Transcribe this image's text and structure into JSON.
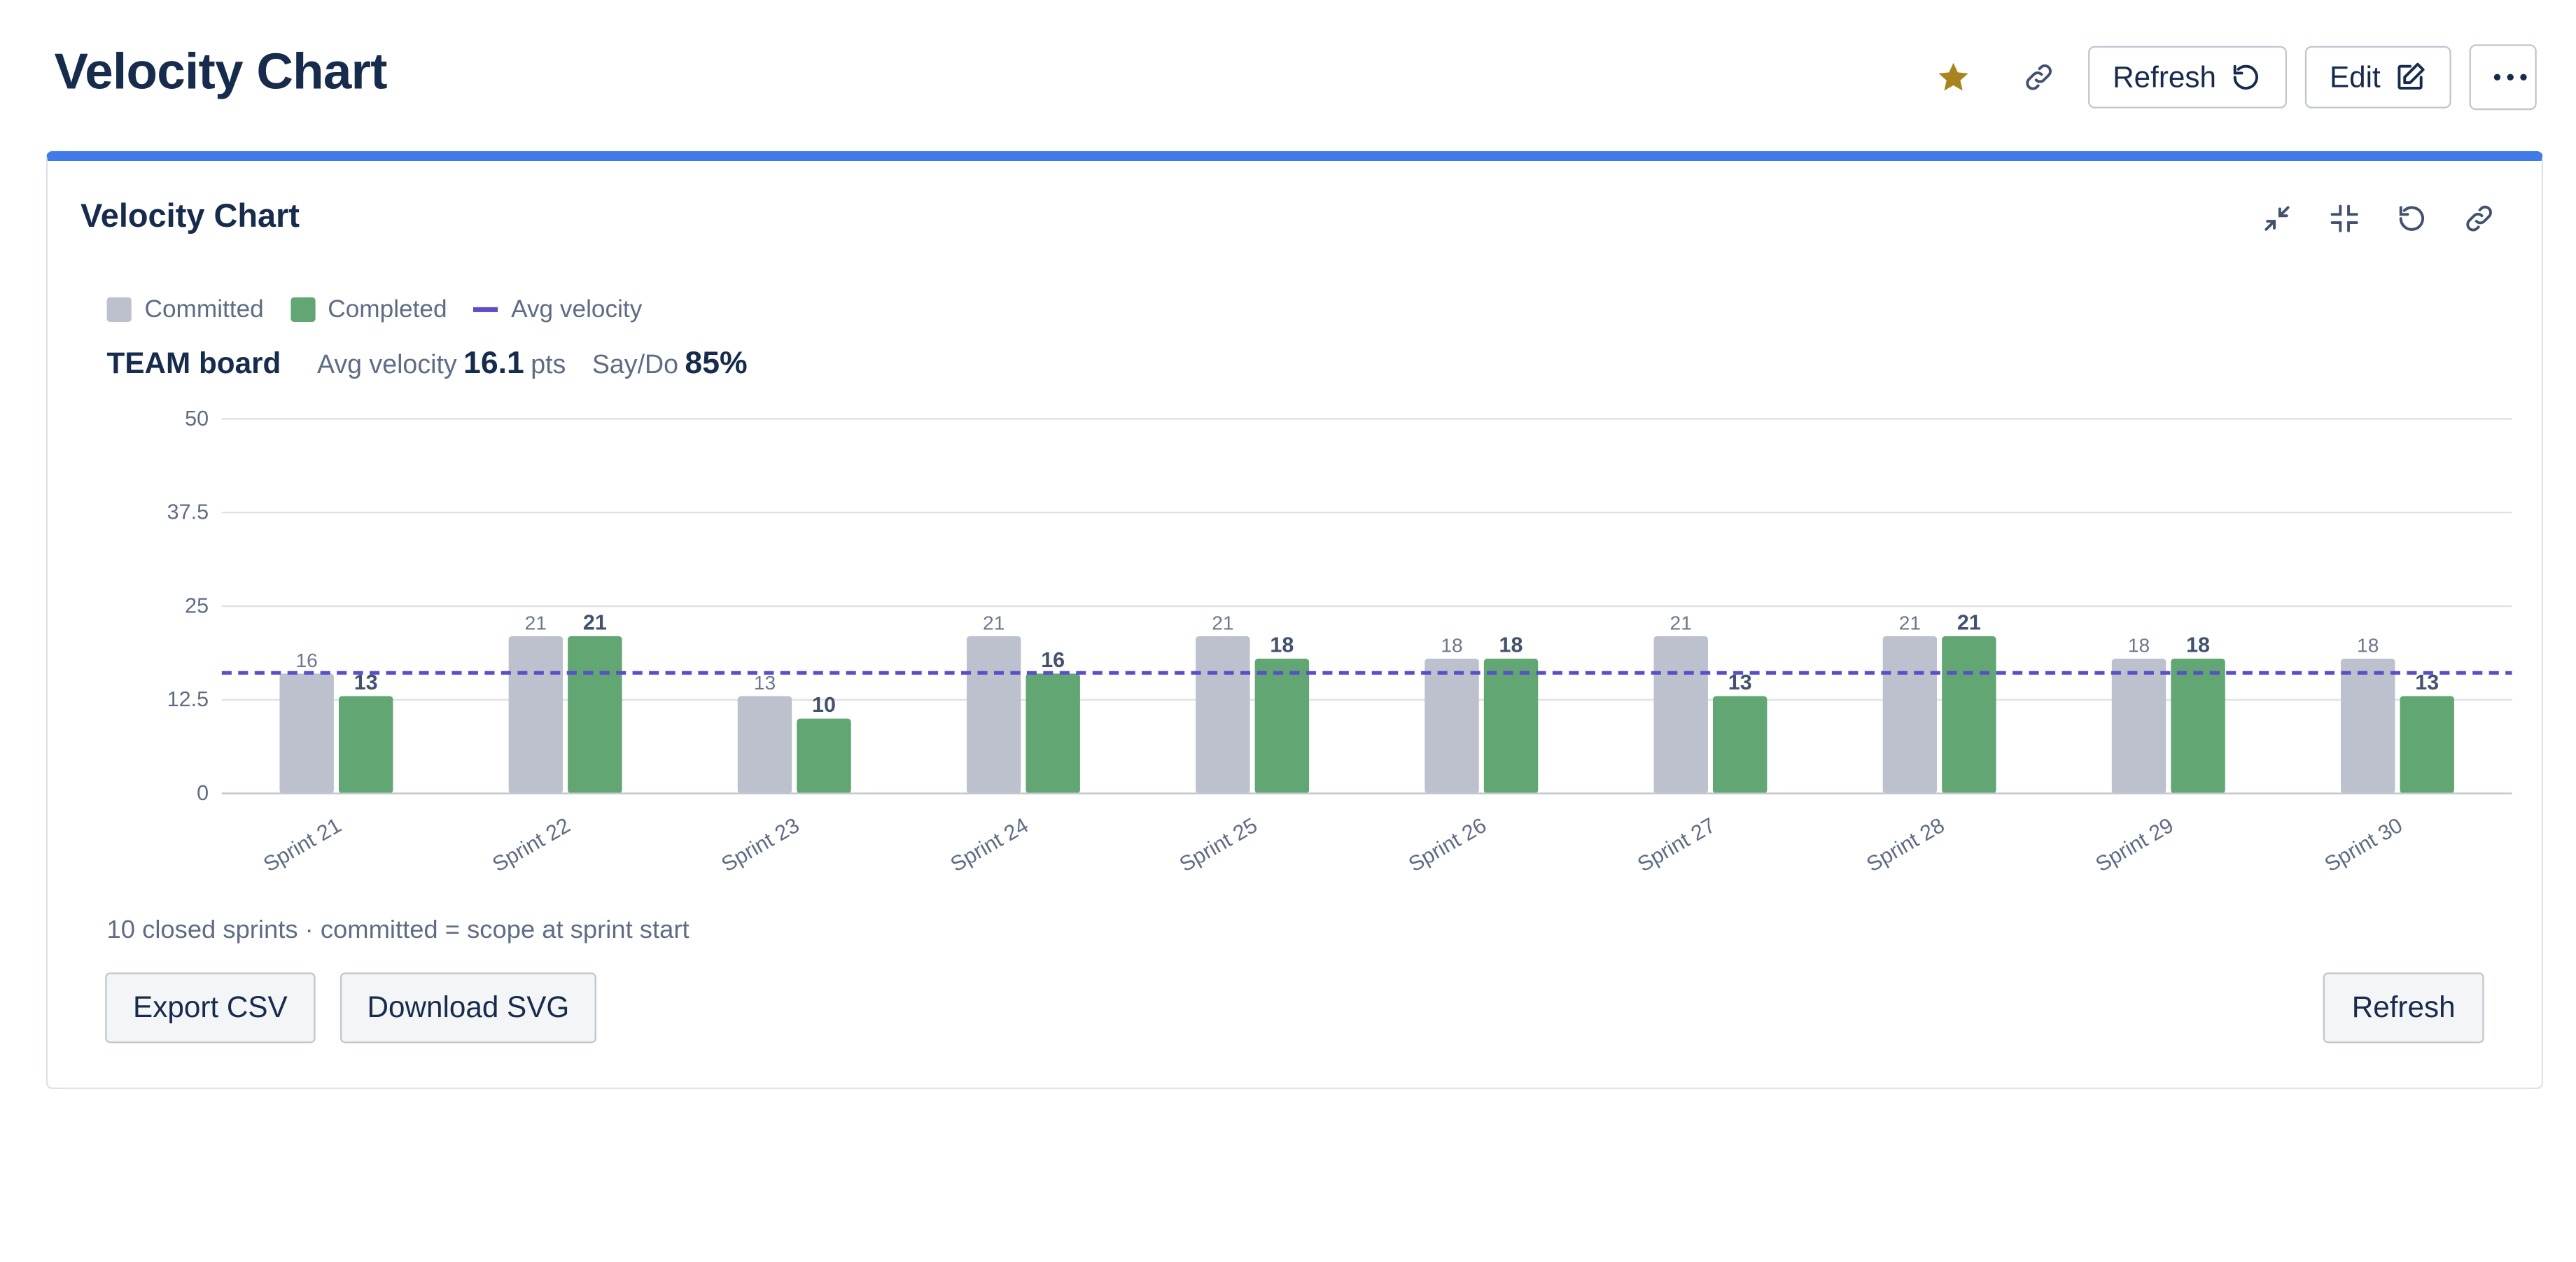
{
  "page": {
    "title": "Velocity Chart"
  },
  "toolbar": {
    "favorite_icon": "star-icon",
    "link_icon": "link-icon",
    "refresh_label": "Refresh",
    "edit_label": "Edit",
    "more_icon": "more-horizontal-icon"
  },
  "panel": {
    "title": "Velocity Chart",
    "actions": [
      "minimize-icon",
      "collapse-icon",
      "reset-icon",
      "link-icon"
    ],
    "legend": [
      {
        "label": "Committed",
        "color": "#bcc1cd"
      },
      {
        "label": "Completed",
        "color": "#61a673"
      },
      {
        "label": "Avg velocity",
        "color": "#5b4fc7"
      }
    ],
    "stats": {
      "board": "TEAM board",
      "avg_label": "Avg velocity",
      "avg_value": "16.1",
      "avg_unit": "pts",
      "saydo_label": "Say/Do",
      "saydo_value": "85%"
    },
    "footnote": "10 closed sprints · committed = scope at sprint start",
    "buttons": {
      "export": "Export CSV",
      "download": "Download SVG",
      "refresh": "Refresh"
    }
  },
  "chart_data": {
    "type": "bar",
    "categories": [
      "Sprint 21",
      "Sprint 22",
      "Sprint 23",
      "Sprint 24",
      "Sprint 25",
      "Sprint 26",
      "Sprint 27",
      "Sprint 28",
      "Sprint 29",
      "Sprint 30"
    ],
    "series": [
      {
        "name": "Committed",
        "values": [
          16,
          21,
          13,
          21,
          21,
          18,
          21,
          21,
          18,
          18
        ],
        "color": "#bcc1cd"
      },
      {
        "name": "Completed",
        "values": [
          13,
          21,
          10,
          16,
          18,
          18,
          13,
          21,
          18,
          13
        ],
        "color": "#61a673"
      }
    ],
    "avg_line": {
      "name": "Avg velocity",
      "value": 16.1,
      "color": "#5b4fc7"
    },
    "yticks": [
      "0",
      "12.5",
      "25",
      "37.5",
      "50"
    ],
    "ylim": [
      0,
      50
    ],
    "grid": true,
    "legend_position": "top-left"
  }
}
